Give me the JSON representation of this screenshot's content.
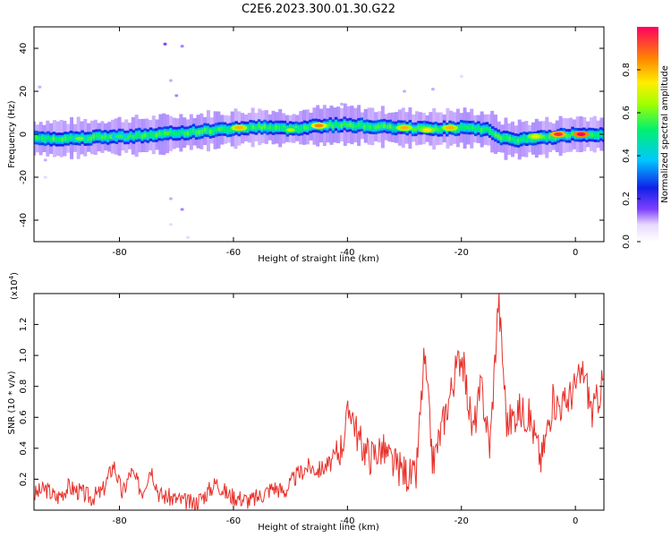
{
  "title": "C2E6.2023.300.01.30.G22",
  "colors": {
    "snr_line": "#e8302a",
    "track": "#2a00c8"
  },
  "top_panel": {
    "xlabel": "Height of straight line (km)",
    "ylabel": "Frequency (Hz)",
    "xlim": [
      -95,
      5
    ],
    "ylim": [
      -50,
      50
    ],
    "xticks": [
      "-80",
      "-60",
      "-40",
      "-20",
      "0"
    ],
    "xtick_values": [
      -80,
      -60,
      -40,
      -20,
      0
    ],
    "yticks": [
      "40",
      "20",
      "0",
      "-20",
      "-40"
    ],
    "ytick_values": [
      40,
      20,
      0,
      -20,
      -40
    ],
    "colorbar_label": "Normalized spectral amplitude",
    "colorbar_ticks": [
      "0.0",
      "0.2",
      "0.4",
      "0.6",
      "0.8"
    ],
    "colorbar_values": [
      0.0,
      0.2,
      0.4,
      0.6,
      0.8
    ]
  },
  "bottom_panel": {
    "xlabel": "Height of straight line (km)",
    "ylabel": "SNR (10 * v/v)",
    "multiplier": "(x10",
    "multiplier_exp": "4",
    "multiplier_close": ")",
    "xlim": [
      -95,
      5
    ],
    "ylim": [
      0,
      1.4
    ],
    "xticks": [
      "-80",
      "-60",
      "-40",
      "-20",
      "0"
    ],
    "xtick_values": [
      -80,
      -60,
      -40,
      -20,
      0
    ],
    "yticks": [
      "0.2",
      "0.4",
      "0.6",
      "0.8",
      "1.0",
      "1.2"
    ],
    "ytick_values": [
      0.2,
      0.4,
      0.6,
      0.8,
      1.0,
      1.2
    ]
  },
  "chart_data": [
    {
      "type": "heatmap",
      "title": "C2E6.2023.300.01.30.G22",
      "xlabel": "Height of straight line (km)",
      "ylabel": "Frequency (Hz)",
      "xlim": [
        -95,
        5
      ],
      "ylim": [
        -50,
        50
      ],
      "colorbar": {
        "label": "Normalized spectral amplitude",
        "range": [
          0,
          1
        ]
      },
      "track": {
        "x": [
          -95,
          -90,
          -85,
          -80,
          -75,
          -70,
          -65,
          -60,
          -55,
          -50,
          -45,
          -40,
          -35,
          -30,
          -25,
          -20,
          -15,
          -13,
          -10,
          -5,
          0,
          4
        ],
        "freq": [
          -2,
          -2,
          -1.5,
          -1,
          -0.5,
          0.5,
          1.5,
          2.5,
          3.5,
          2.5,
          4,
          4.5,
          3.5,
          3,
          2.5,
          3,
          2,
          -2,
          -2.5,
          -1.5,
          0,
          0
        ]
      },
      "hotspots": [
        {
          "x": -87,
          "freq": -2,
          "amp": 0.6
        },
        {
          "x": -80,
          "freq": -1,
          "amp": 0.55
        },
        {
          "x": -59,
          "freq": 3,
          "amp": 0.8
        },
        {
          "x": -50,
          "freq": 2,
          "amp": 0.65
        },
        {
          "x": -45,
          "freq": 4,
          "amp": 0.85
        },
        {
          "x": -30,
          "freq": 3,
          "amp": 0.8
        },
        {
          "x": -26,
          "freq": 2,
          "amp": 0.75
        },
        {
          "x": -22,
          "freq": 3,
          "amp": 0.8
        },
        {
          "x": -7,
          "freq": -1,
          "amp": 0.75
        },
        {
          "x": -3,
          "freq": 0,
          "amp": 0.95
        },
        {
          "x": 1,
          "freq": 0,
          "amp": 1.0
        }
      ],
      "scatter_noise": [
        {
          "x": -72,
          "freq": 42,
          "amp": 0.15
        },
        {
          "x": -69,
          "freq": 41,
          "amp": 0.12
        },
        {
          "x": -71,
          "freq": 25,
          "amp": 0.1
        },
        {
          "x": -70,
          "freq": 18,
          "amp": 0.12
        },
        {
          "x": -71,
          "freq": -30,
          "amp": 0.1
        },
        {
          "x": -69,
          "freq": -35,
          "amp": 0.12
        },
        {
          "x": -71,
          "freq": -42,
          "amp": 0.08
        },
        {
          "x": -68,
          "freq": -48,
          "amp": 0.08
        },
        {
          "x": -41,
          "freq": 14,
          "amp": 0.1
        },
        {
          "x": -30,
          "freq": 20,
          "amp": 0.1
        },
        {
          "x": -25,
          "freq": 21,
          "amp": 0.1
        },
        {
          "x": -20,
          "freq": 27,
          "amp": 0.08
        },
        {
          "x": -94,
          "freq": 22,
          "amp": 0.1
        },
        {
          "x": -93,
          "freq": -12,
          "amp": 0.1
        },
        {
          "x": -93,
          "freq": -20,
          "amp": 0.08
        }
      ]
    },
    {
      "type": "line",
      "xlabel": "Height of straight line (km)",
      "ylabel": "SNR (10 * v/v)",
      "units_multiplier": "x10^4",
      "xlim": [
        -95,
        5
      ],
      "ylim": [
        0,
        1.4
      ],
      "series": [
        {
          "x": [
            -95,
            -93,
            -91,
            -89,
            -87,
            -85,
            -83,
            -81,
            -79.5,
            -78,
            -76,
            -74.5,
            -73,
            -71,
            -69,
            -67,
            -65,
            -63,
            -61,
            -59,
            -57,
            -55,
            -53,
            -51,
            -49,
            -47,
            -45,
            -43,
            -41,
            -39.5,
            -38,
            -36,
            -34,
            -32,
            -30,
            -28,
            -26.5,
            -25,
            -23,
            -21,
            -20,
            -18,
            -16.5,
            -15,
            -13.5,
            -12,
            -10,
            -8,
            -6,
            -4,
            -2,
            0,
            1.5,
            3,
            5
          ],
          "y": [
            0.1,
            0.14,
            0.08,
            0.15,
            0.12,
            0.08,
            0.12,
            0.3,
            0.1,
            0.25,
            0.12,
            0.28,
            0.1,
            0.08,
            0.06,
            0.04,
            0.1,
            0.18,
            0.1,
            0.08,
            0.06,
            0.1,
            0.15,
            0.12,
            0.22,
            0.28,
            0.26,
            0.3,
            0.42,
            0.68,
            0.45,
            0.35,
            0.4,
            0.3,
            0.25,
            0.2,
            1.0,
            0.3,
            0.6,
            0.9,
            1.02,
            0.5,
            0.8,
            0.4,
            1.38,
            0.55,
            0.65,
            0.6,
            0.32,
            0.7,
            0.68,
            0.8,
            0.9,
            0.62,
            0.85
          ]
        }
      ]
    }
  ]
}
